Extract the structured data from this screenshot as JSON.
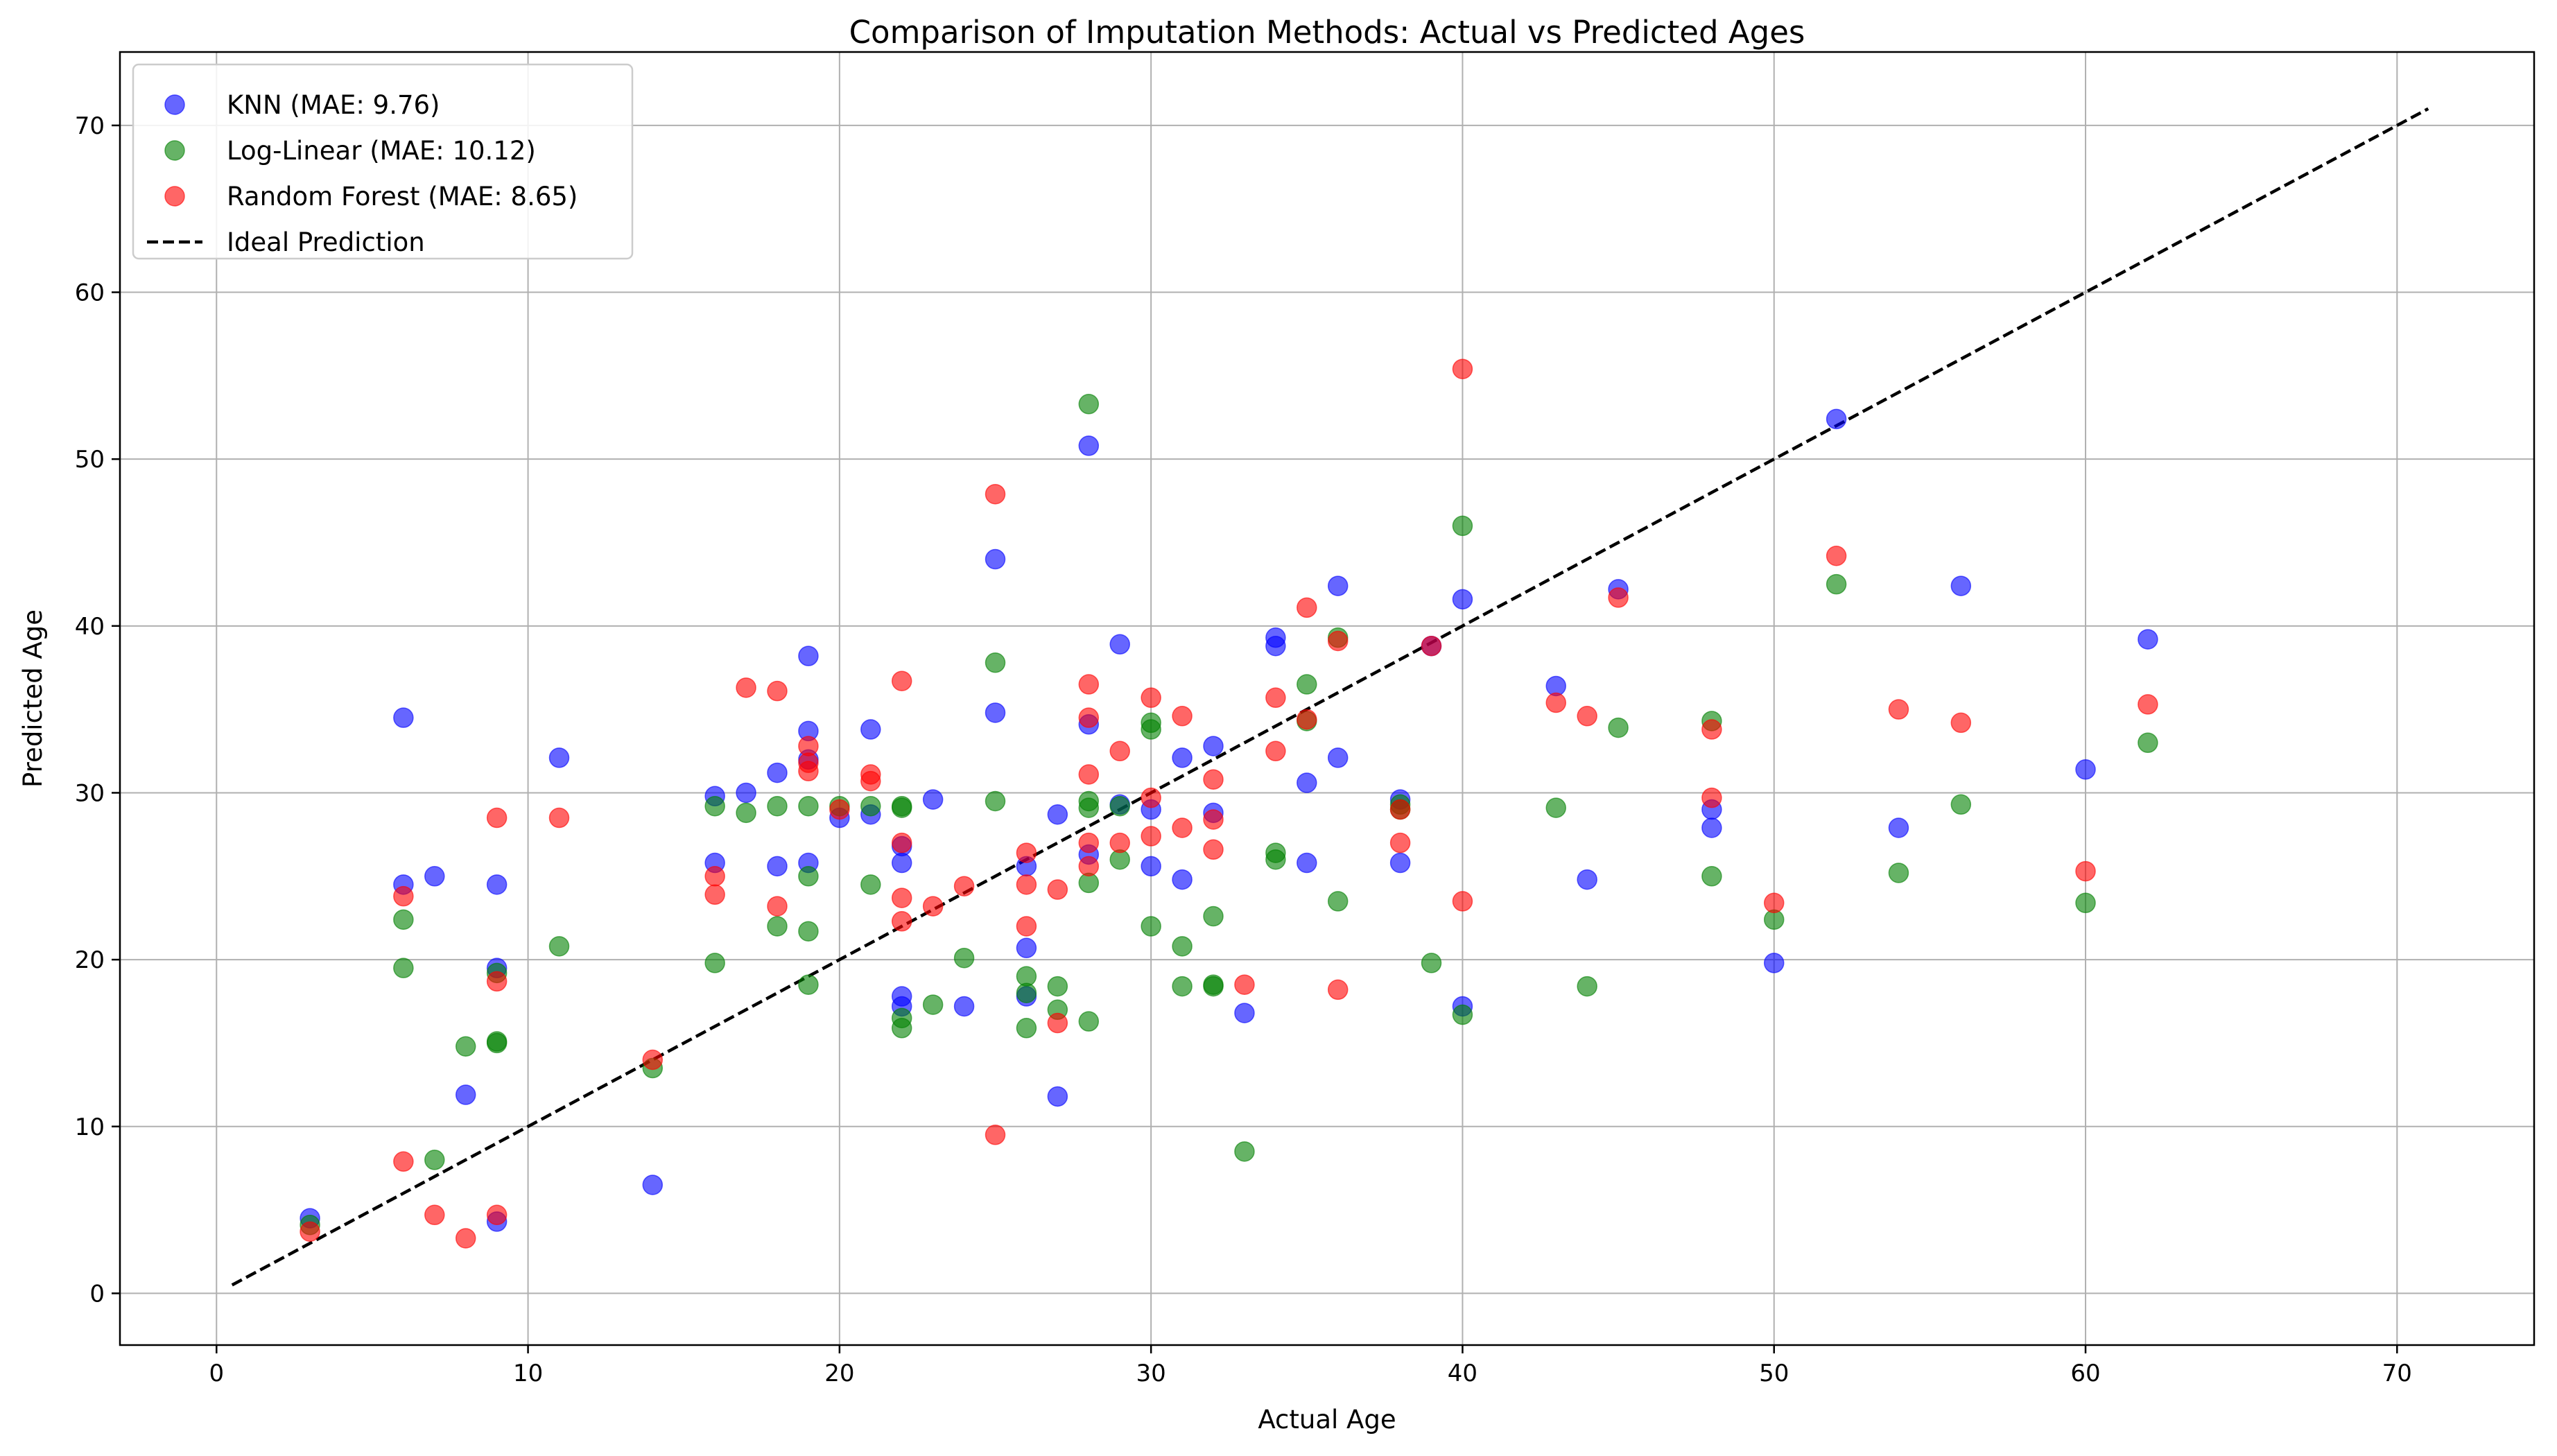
{
  "chart_data": {
    "type": "scatter",
    "title": "Comparison of Imputation Methods: Actual vs Predicted Ages",
    "xlabel": "Actual Age",
    "ylabel": "Predicted Age",
    "xlim": [
      -3.1,
      74.4
    ],
    "ylim": [
      -3.1,
      74.4
    ],
    "xticks": [
      0,
      10,
      20,
      30,
      40,
      50,
      60,
      70
    ],
    "yticks": [
      0,
      10,
      20,
      30,
      40,
      50,
      60,
      70
    ],
    "grid": true,
    "legend_position": "top-left",
    "series": [
      {
        "name": "KNN (MAE: 9.76)",
        "color": "#0000ff",
        "points": [
          [
            3,
            4.5
          ],
          [
            6,
            34.5
          ],
          [
            6,
            24.5
          ],
          [
            7,
            25
          ],
          [
            8,
            11.9
          ],
          [
            9,
            24.5
          ],
          [
            9,
            19.5
          ],
          [
            9,
            4.3
          ],
          [
            11,
            32.1
          ],
          [
            14,
            6.5
          ],
          [
            16,
            29.8
          ],
          [
            16,
            25.8
          ],
          [
            17,
            30
          ],
          [
            18,
            31.2
          ],
          [
            18,
            25.6
          ],
          [
            19,
            38.2
          ],
          [
            19,
            33.7
          ],
          [
            19,
            32
          ],
          [
            19,
            25.8
          ],
          [
            20,
            28.5
          ],
          [
            21,
            33.8
          ],
          [
            21,
            28.7
          ],
          [
            22,
            26.8
          ],
          [
            22,
            25.8
          ],
          [
            22,
            17.8
          ],
          [
            22,
            17.2
          ],
          [
            23,
            29.6
          ],
          [
            24,
            17.2
          ],
          [
            25,
            44
          ],
          [
            25,
            34.8
          ],
          [
            26,
            25.6
          ],
          [
            26,
            20.7
          ],
          [
            26,
            17.8
          ],
          [
            27,
            28.7
          ],
          [
            27,
            11.8
          ],
          [
            28,
            50.8
          ],
          [
            28,
            34.1
          ],
          [
            28,
            26.3
          ],
          [
            29,
            38.9
          ],
          [
            29,
            29.3
          ],
          [
            30,
            29
          ],
          [
            30,
            25.6
          ],
          [
            31,
            32.1
          ],
          [
            31,
            24.8
          ],
          [
            32,
            32.8
          ],
          [
            32,
            28.8
          ],
          [
            33,
            16.8
          ],
          [
            34,
            39.3
          ],
          [
            34,
            38.8
          ],
          [
            35,
            30.6
          ],
          [
            35,
            25.8
          ],
          [
            36,
            42.4
          ],
          [
            36,
            32.1
          ],
          [
            38,
            29.6
          ],
          [
            38,
            25.8
          ],
          [
            39,
            38.8
          ],
          [
            40,
            41.6
          ],
          [
            40,
            17.2
          ],
          [
            43,
            36.4
          ],
          [
            44,
            24.8
          ],
          [
            45,
            42.2
          ],
          [
            48,
            29
          ],
          [
            48,
            27.9
          ],
          [
            50,
            19.8
          ],
          [
            52,
            52.4
          ],
          [
            54,
            27.9
          ],
          [
            56,
            42.4
          ],
          [
            60,
            31.4
          ],
          [
            62,
            39.2
          ]
        ]
      },
      {
        "name": "Log-Linear (MAE: 10.12)",
        "color": "#008000",
        "points": [
          [
            3,
            4.1
          ],
          [
            6,
            22.4
          ],
          [
            6,
            19.5
          ],
          [
            7,
            8
          ],
          [
            8,
            14.8
          ],
          [
            9,
            19.2
          ],
          [
            9,
            15.1
          ],
          [
            9,
            15
          ],
          [
            11,
            20.8
          ],
          [
            14,
            13.5
          ],
          [
            16,
            29.2
          ],
          [
            16,
            19.8
          ],
          [
            17,
            28.8
          ],
          [
            18,
            29.2
          ],
          [
            18,
            22
          ],
          [
            19,
            29.2
          ],
          [
            19,
            25
          ],
          [
            19,
            21.7
          ],
          [
            19,
            18.5
          ],
          [
            20,
            29.2
          ],
          [
            21,
            29.2
          ],
          [
            21,
            24.5
          ],
          [
            22,
            29.2
          ],
          [
            22,
            29.1
          ],
          [
            22,
            16.5
          ],
          [
            22,
            15.9
          ],
          [
            23,
            17.3
          ],
          [
            24,
            20.1
          ],
          [
            25,
            37.8
          ],
          [
            25,
            29.5
          ],
          [
            26,
            19
          ],
          [
            26,
            18
          ],
          [
            26,
            15.9
          ],
          [
            27,
            18.4
          ],
          [
            27,
            17
          ],
          [
            28,
            53.3
          ],
          [
            28,
            29.5
          ],
          [
            28,
            29.1
          ],
          [
            28,
            24.6
          ],
          [
            28,
            16.3
          ],
          [
            29,
            26
          ],
          [
            29,
            29.2
          ],
          [
            30,
            34.2
          ],
          [
            30,
            33.8
          ],
          [
            30,
            22
          ],
          [
            31,
            20.8
          ],
          [
            31,
            18.4
          ],
          [
            32,
            22.6
          ],
          [
            32,
            18.5
          ],
          [
            32,
            18.4
          ],
          [
            33,
            8.5
          ],
          [
            34,
            26.4
          ],
          [
            34,
            26
          ],
          [
            35,
            36.5
          ],
          [
            35,
            34.3
          ],
          [
            36,
            39.3
          ],
          [
            36,
            23.5
          ],
          [
            38,
            29.3
          ],
          [
            38,
            29
          ],
          [
            39,
            19.8
          ],
          [
            40,
            46
          ],
          [
            40,
            16.7
          ],
          [
            43,
            29.1
          ],
          [
            44,
            18.4
          ],
          [
            45,
            33.9
          ],
          [
            48,
            34.3
          ],
          [
            48,
            25
          ],
          [
            50,
            22.4
          ],
          [
            52,
            42.5
          ],
          [
            54,
            25.2
          ],
          [
            56,
            29.3
          ],
          [
            60,
            23.4
          ],
          [
            62,
            33
          ]
        ]
      },
      {
        "name": "Random Forest (MAE: 8.65)",
        "color": "#ff0000",
        "points": [
          [
            3,
            3.7
          ],
          [
            6,
            23.8
          ],
          [
            6,
            7.9
          ],
          [
            7,
            4.7
          ],
          [
            8,
            3.3
          ],
          [
            9,
            28.5
          ],
          [
            9,
            18.7
          ],
          [
            9,
            4.7
          ],
          [
            11,
            28.5
          ],
          [
            14,
            14
          ],
          [
            16,
            25
          ],
          [
            16,
            23.9
          ],
          [
            17,
            36.3
          ],
          [
            18,
            36.1
          ],
          [
            18,
            23.2
          ],
          [
            19,
            32.8
          ],
          [
            19,
            31.8
          ],
          [
            19,
            31.3
          ],
          [
            20,
            29
          ],
          [
            21,
            31.1
          ],
          [
            21,
            30.7
          ],
          [
            22,
            36.7
          ],
          [
            22,
            27
          ],
          [
            22,
            23.7
          ],
          [
            22,
            22.3
          ],
          [
            23,
            23.2
          ],
          [
            24,
            24.4
          ],
          [
            25,
            47.9
          ],
          [
            25,
            9.5
          ],
          [
            26,
            26.4
          ],
          [
            26,
            24.5
          ],
          [
            26,
            22
          ],
          [
            27,
            24.2
          ],
          [
            27,
            16.2
          ],
          [
            28,
            36.5
          ],
          [
            28,
            34.5
          ],
          [
            28,
            31.1
          ],
          [
            28,
            27
          ],
          [
            28,
            25.6
          ],
          [
            29,
            32.5
          ],
          [
            29,
            27
          ],
          [
            30,
            35.7
          ],
          [
            30,
            29.7
          ],
          [
            30,
            27.4
          ],
          [
            31,
            34.6
          ],
          [
            31,
            27.9
          ],
          [
            32,
            30.8
          ],
          [
            32,
            28.4
          ],
          [
            32,
            26.6
          ],
          [
            33,
            18.5
          ],
          [
            34,
            35.7
          ],
          [
            34,
            32.5
          ],
          [
            35,
            41.1
          ],
          [
            35,
            34.4
          ],
          [
            36,
            39.1
          ],
          [
            36,
            18.2
          ],
          [
            38,
            29
          ],
          [
            38,
            27
          ],
          [
            39,
            38.8
          ],
          [
            40,
            55.4
          ],
          [
            40,
            23.5
          ],
          [
            43,
            35.4
          ],
          [
            44,
            34.6
          ],
          [
            45,
            41.7
          ],
          [
            48,
            33.8
          ],
          [
            48,
            29.7
          ],
          [
            50,
            23.4
          ],
          [
            52,
            44.2
          ],
          [
            54,
            35
          ],
          [
            56,
            34.2
          ],
          [
            60,
            25.3
          ],
          [
            62,
            35.3
          ]
        ]
      },
      {
        "name": "Ideal Prediction",
        "color": "#000000",
        "style": "dashed-line",
        "points": [
          [
            0.5,
            0.5
          ],
          [
            71,
            71
          ]
        ]
      }
    ]
  }
}
